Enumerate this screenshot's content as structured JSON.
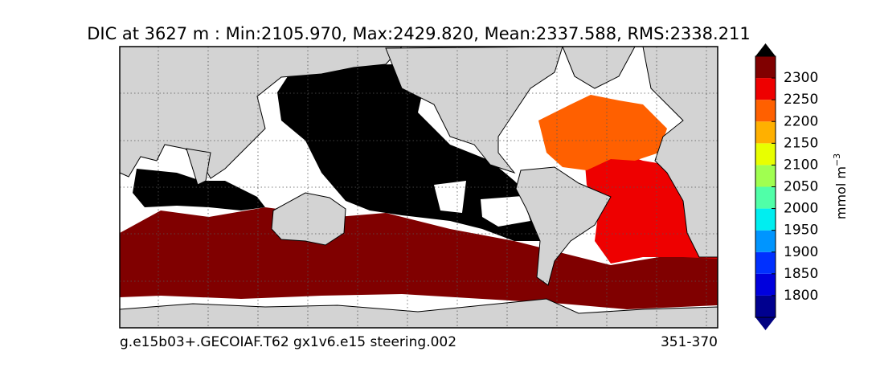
{
  "title": "DIC at 3627 m : Min:2105.970, Max:2429.820, Mean:2337.588, RMS:2338.211",
  "footer": {
    "left": "g.e15b03+.GECOIAF.T62 gx1v6.e15 steering.002",
    "right": "351-370"
  },
  "colorbar": {
    "label": "mmol m",
    "label_superscript": "−3",
    "lim": [
      1750,
      2350
    ],
    "ticks": [
      1800,
      1850,
      1900,
      1950,
      2000,
      2050,
      2100,
      2150,
      2200,
      2250,
      2300
    ],
    "colors": [
      "#00008f",
      "#0000dd",
      "#0030ff",
      "#0095ff",
      "#00eef0",
      "#50ffa8",
      "#a0ff50",
      "#e8ff00",
      "#ffb000",
      "#ff6000",
      "#ee0000",
      "#800000"
    ],
    "under_color": "#000080",
    "over_color": "#000000"
  }
}
